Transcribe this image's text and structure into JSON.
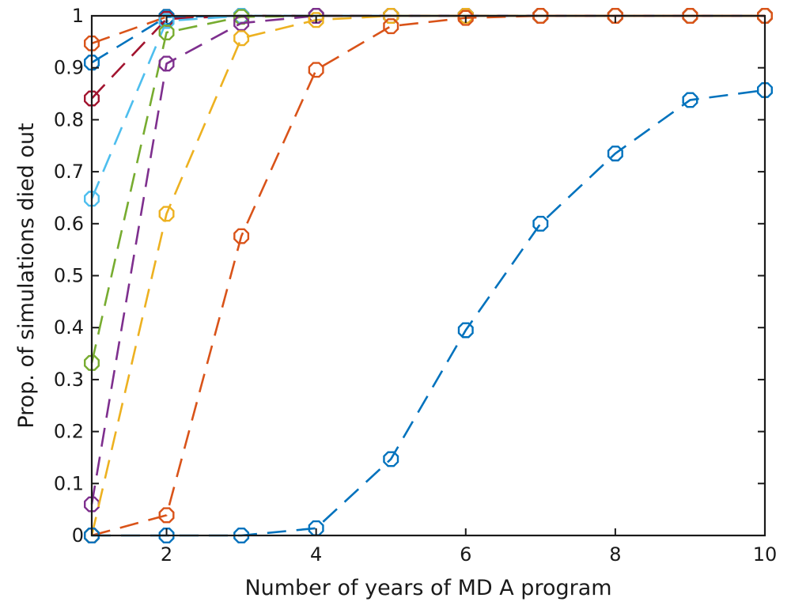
{
  "chart_data": {
    "type": "line",
    "title": "",
    "xlabel": "Number of years of MD A  program",
    "ylabel": "Prop.  of simulations  died out",
    "xlim": [
      1,
      10
    ],
    "ylim": [
      0,
      1
    ],
    "xticks": [
      2,
      4,
      6,
      8,
      10
    ],
    "yticks": [
      0,
      0.1,
      0.2,
      0.3,
      0.4,
      0.5,
      0.6,
      0.7,
      0.8,
      0.9,
      1
    ],
    "xtick_labels": [
      "2",
      "4",
      "6",
      "8",
      "10"
    ],
    "ytick_labels": [
      "0",
      "0.1",
      "0.2",
      "0.3",
      "0.4",
      "0.5",
      "0.6",
      "0.7",
      "0.8",
      "0.9",
      "1"
    ],
    "grid": false,
    "line_style": "dashed",
    "marker": "open-octagon",
    "x": [
      1,
      2,
      3,
      4,
      5,
      6,
      7,
      8,
      9,
      10
    ],
    "series": [
      {
        "color": "#0072BD",
        "values": [
          0,
          0,
          0,
          0.014,
          0.147,
          0.395,
          0.6,
          0.735,
          0.838,
          0.857
        ]
      },
      {
        "color": "#D95319",
        "values": [
          0,
          0.039,
          0.576,
          0.896,
          0.98,
          0.996,
          1,
          1,
          1,
          1
        ]
      },
      {
        "color": "#EDB120",
        "values": [
          0,
          0.619,
          0.957,
          0.992,
          1,
          1,
          1,
          1,
          1,
          1
        ]
      },
      {
        "color": "#7E2F8E",
        "values": [
          0.06,
          0.908,
          0.986,
          1,
          1,
          1,
          1,
          1,
          1,
          1
        ]
      },
      {
        "color": "#77AC30",
        "values": [
          0.332,
          0.968,
          0.998,
          1,
          1,
          1,
          1,
          1,
          1,
          1
        ]
      },
      {
        "color": "#4DBEEE",
        "values": [
          0.648,
          0.99,
          1,
          1,
          1,
          1,
          1,
          1,
          1,
          1
        ]
      },
      {
        "color": "#A2142F",
        "values": [
          0.841,
          0.994,
          1,
          1,
          1,
          1,
          1,
          1,
          1,
          1
        ]
      },
      {
        "color": "#0072BD",
        "values": [
          0.91,
          0.998,
          1,
          1,
          1,
          1,
          1,
          1,
          1,
          1
        ]
      },
      {
        "color": "#D95319",
        "values": [
          0.947,
          0.998,
          1,
          1,
          1,
          1,
          1,
          1,
          1,
          1
        ]
      }
    ]
  }
}
